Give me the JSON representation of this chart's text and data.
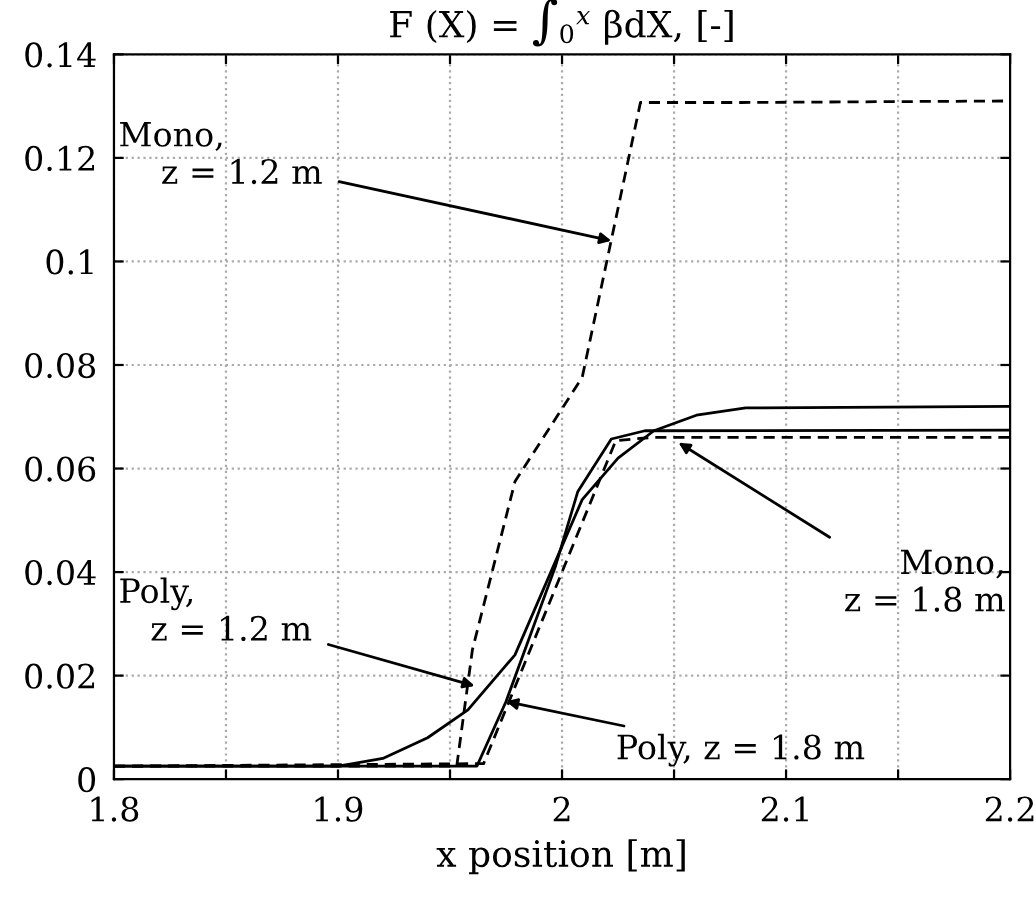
{
  "chart_data": {
    "type": "line",
    "title": "F (X) = ∫$_{0}$$^{x}$ βdX, [-]",
    "xlabel": "x position [m]",
    "xlim": [
      1.8,
      2.2
    ],
    "ylim": [
      0,
      0.14
    ],
    "xticks": [
      1.8,
      {
        "value": 1.85,
        "label": null
      },
      1.9,
      {
        "value": 1.95,
        "label": null
      },
      2,
      {
        "value": 2.05,
        "label": null
      },
      2.1,
      {
        "value": 2.15,
        "label": null
      },
      2.2
    ],
    "yticks": [
      0,
      0.02,
      0.04,
      0.06,
      0.08,
      0.1,
      0.12,
      0.14
    ],
    "grid": true,
    "legend": false,
    "series": [
      {
        "color": "#000000",
        "line_style": "dashed",
        "x": [
          1.8,
          1.953,
          1.96,
          1.979,
          2.009,
          2.035,
          2.08,
          2.2
        ],
        "values": [
          0.0025,
          0.0025,
          0.025,
          0.0575,
          0.0776,
          0.1307,
          0.1307,
          0.131
        ]
      },
      {
        "color": "#000000",
        "line_style": "solid",
        "x": [
          1.8,
          1.9,
          1.92,
          1.94,
          1.958,
          1.979,
          1.995,
          2.009,
          2.025,
          2.041,
          2.06,
          2.082,
          2.2
        ],
        "values": [
          0.0025,
          0.0025,
          0.004,
          0.008,
          0.0134,
          0.024,
          0.04,
          0.054,
          0.062,
          0.0673,
          0.0703,
          0.0717,
          0.072
        ]
      },
      {
        "color": "#000000",
        "line_style": "solid",
        "x": [
          1.8,
          1.962,
          1.975,
          1.997,
          2.007,
          2.022,
          2.037,
          2.2
        ],
        "values": [
          0.0025,
          0.0025,
          0.015,
          0.041,
          0.0555,
          0.0657,
          0.0673,
          0.0674
        ]
      },
      {
        "color": "#000000",
        "line_style": "dashed",
        "x": [
          1.8,
          1.965,
          2.024,
          2.04,
          2.2
        ],
        "values": [
          0.0025,
          0.003,
          0.0654,
          0.066,
          0.066
        ]
      }
    ],
    "annotations": [
      {
        "text": "Mono,\n    z = 1.2 m",
        "x": 2.022,
        "y": 0.104
      },
      {
        "text": "Poly,\n   z = 1.2 m",
        "x": 1.961,
        "y": 0.018
      },
      {
        "text": "Mono,\n    z = 1.8 m",
        "x": 2.052,
        "y": 0.065
      },
      {
        "text": "Poly, z = 1.8 m",
        "x": 1.975,
        "y": 0.015
      }
    ]
  }
}
